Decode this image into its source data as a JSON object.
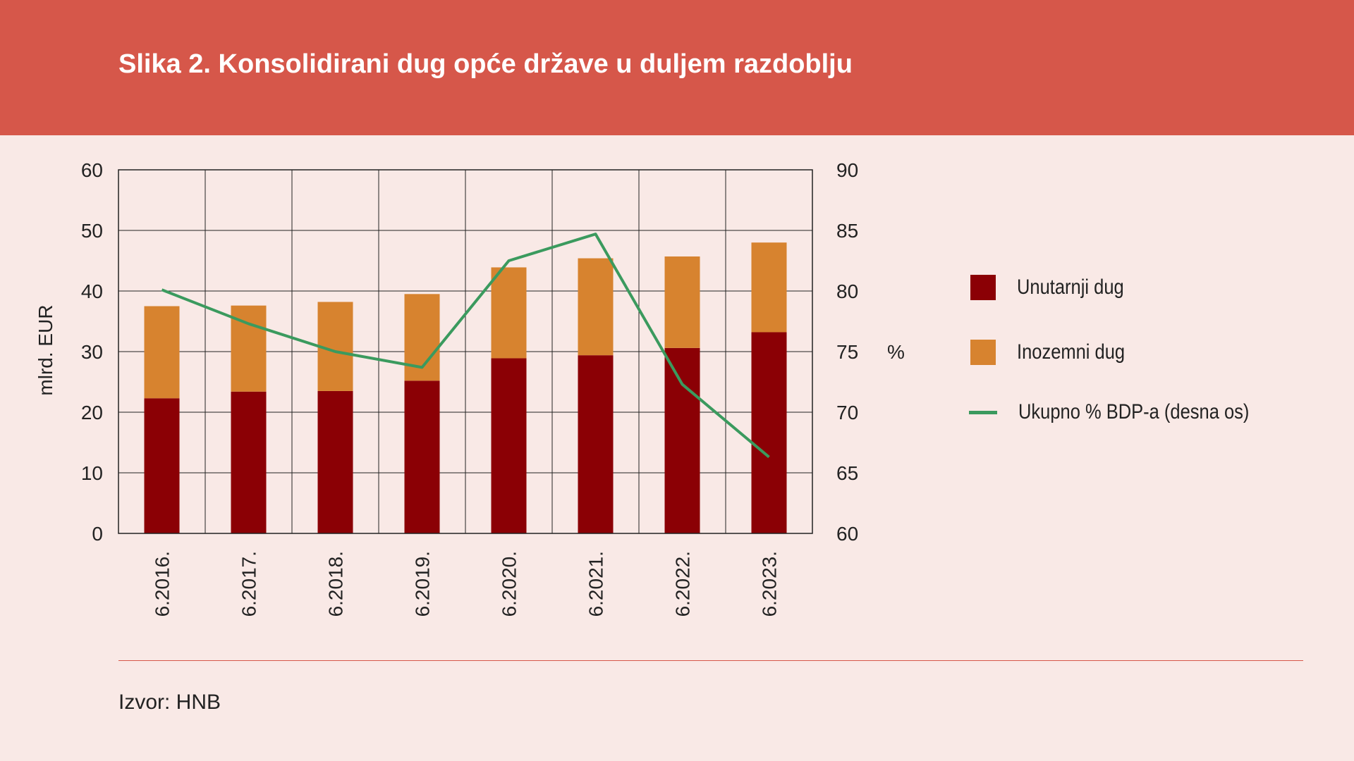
{
  "header": {
    "title": "Slika 2. Konsolidirani dug opće države u duljem razdoblju"
  },
  "footer": {
    "source": "Izvor: HNB"
  },
  "colors": {
    "header_bg": "#d6574a",
    "page_bg": "#f9e9e6",
    "domestic": "#8b0005",
    "foreign": "#d7832f",
    "line": "#3b9a5e"
  },
  "chart_data": {
    "type": "bar",
    "stacked": true,
    "categories": [
      "6.2016.",
      "6.2017.",
      "6.2018.",
      "6.2019.",
      "6.2020.",
      "6.2021.",
      "6.2022.",
      "6.2023."
    ],
    "series": [
      {
        "name": "Unutarnji dug",
        "type": "bar",
        "axis": "left",
        "values": [
          22.3,
          23.4,
          23.5,
          25.2,
          28.9,
          29.4,
          30.6,
          33.2
        ]
      },
      {
        "name": "Inozemni dug",
        "type": "bar",
        "axis": "left",
        "values": [
          15.2,
          14.2,
          14.7,
          14.3,
          15.0,
          16.0,
          15.1,
          14.8
        ]
      },
      {
        "name": "Ukupno % BDP-a (desna os)",
        "type": "line",
        "axis": "right",
        "values": [
          80.1,
          77.3,
          75.0,
          73.7,
          82.5,
          84.7,
          72.3,
          66.3
        ]
      }
    ],
    "ylabel": "mlrd. EUR",
    "y2label": "%",
    "ylim": [
      0,
      60
    ],
    "yticks": [
      "0",
      "10",
      "20",
      "30",
      "40",
      "50",
      "60"
    ],
    "y2lim": [
      60,
      90
    ],
    "y2ticks": [
      "60",
      "65",
      "70",
      "75",
      "80",
      "85",
      "90"
    ],
    "grid": true,
    "legend_position": "right"
  }
}
